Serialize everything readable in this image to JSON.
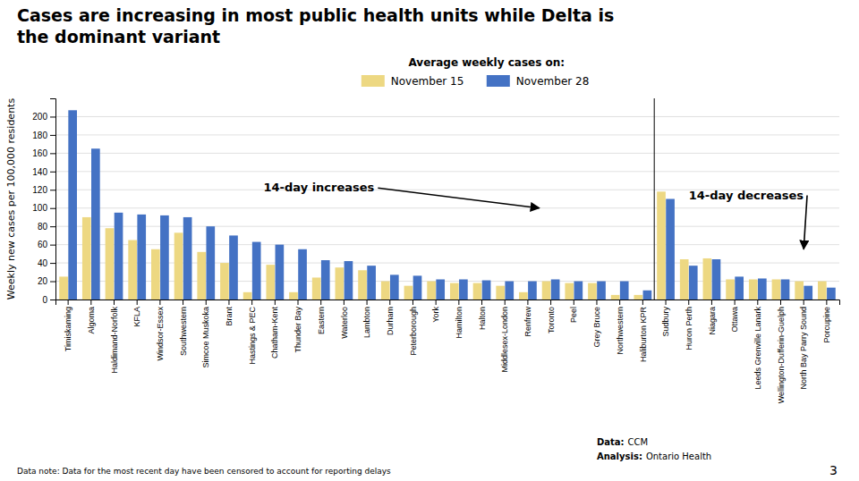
{
  "chart_data": {
    "type": "bar",
    "title": [
      "Cases are increasing in most public health units while Delta is",
      "the dominant variant"
    ],
    "y_label": "Weekly new cases per 100,000 residents",
    "legend_title": "Average weekly cases on:",
    "legend": "top",
    "grid": true,
    "categories": [
      "Timiskaming",
      "Algoma",
      "Haldimand-Norfolk",
      "KFLA",
      "Windsor-Essex",
      "Southwestern",
      "Simcoe Muskoka",
      "Brant",
      "Hastings & PEC",
      "Chatham-Kent",
      "Thunder Bay",
      "Eastern",
      "Waterloo",
      "Lambton",
      "Durham",
      "Peterborough",
      "York",
      "Hamilton",
      "Halton",
      "Middlesex-London",
      "Renfrew",
      "Toronto",
      "Peel",
      "Grey Bruce",
      "Northwestern",
      "Haliburton KPR",
      "Sudbury",
      "Huron Perth",
      "Niagara",
      "Ottawa",
      "Leeds Grenville Lanark",
      "Wellington-Dufferin-Guelph",
      "North Bay Parry Sound",
      "Porcupine"
    ],
    "series": [
      {
        "name": "November 15",
        "color": "#EDD882",
        "values": [
          25,
          90,
          78,
          65,
          55,
          73,
          52,
          40,
          8,
          38,
          8,
          24,
          35,
          32,
          20,
          15,
          20,
          18,
          18,
          15,
          8,
          20,
          18,
          18,
          5,
          5,
          118,
          44,
          45,
          22,
          22,
          22,
          20,
          20
        ]
      },
      {
        "name": "November 28",
        "color": "#4472C4",
        "values": [
          207,
          165,
          95,
          93,
          92,
          90,
          80,
          70,
          63,
          60,
          55,
          43,
          42,
          37,
          27,
          26,
          22,
          22,
          21,
          20,
          20,
          22,
          20,
          20,
          20,
          10,
          110,
          37,
          44,
          25,
          23,
          22,
          15,
          13
        ]
      }
    ],
    "ylim": [
      0,
      220
    ],
    "yticks": [
      0,
      20,
      40,
      60,
      80,
      100,
      120,
      140,
      160,
      180,
      200
    ],
    "annotations": [
      "14-day increases",
      "14-day decreases"
    ],
    "footnote": "Data note: Data for the most recent day have been censored to account for reporting delays",
    "sources": [
      {
        "label": "Data:",
        "text": "CCM"
      },
      {
        "label": "Analysis:",
        "text": "Ontario Health"
      }
    ],
    "page_number": "3"
  }
}
